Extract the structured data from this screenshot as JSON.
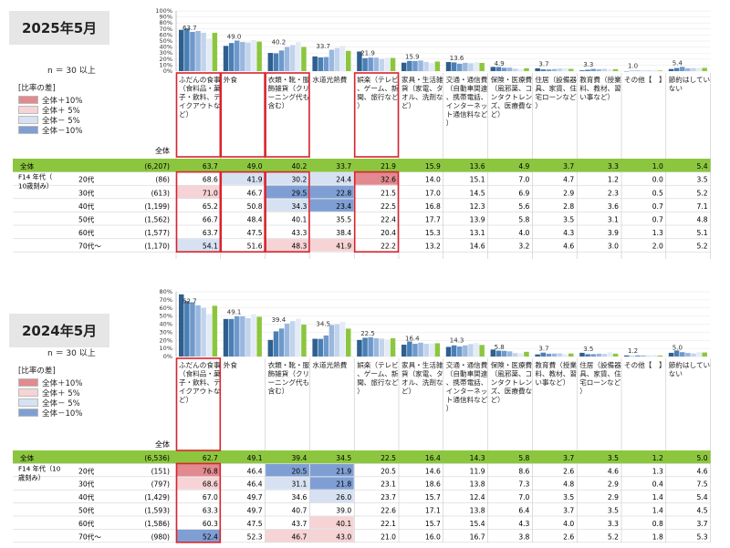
{
  "legend": {
    "title": "[比率の差]",
    "items": [
      {
        "label": "全体＋10%",
        "color": "#e28a8f"
      },
      {
        "label": "全体＋ 5%",
        "color": "#f6d3d5"
      },
      {
        "label": "全体－ 5%",
        "color": "#d6e1f2"
      },
      {
        "label": "全体－10%",
        "color": "#7f9fd4"
      }
    ]
  },
  "colors": {
    "total_row": "#8cc63f",
    "highlight": "#d9232e",
    "series": [
      "#2e5f8e",
      "#4a7fb5",
      "#6e99cc",
      "#9ab7de",
      "#c2d4ec",
      "#e3ebf6",
      "#8cc63f"
    ]
  },
  "y_ticks": [
    "0%",
    "10%",
    "20%",
    "30%",
    "40%",
    "50%",
    "60%",
    "70%",
    "80%"
  ],
  "n_note": "n ＝ 30 以上",
  "axis_group_label": "F14 年代（10歳刻み）",
  "axis_group_label_2024": "F14 年代（10 歳刻み）",
  "total_header": "全体",
  "panels": [
    {
      "title": "2025年5月",
      "categories": [
        "ふだんの食事（食料品・菓子・飲料、テイクアウトなど）",
        "外食",
        "衣類・靴・服飾雑貨（クリーニング代も含む）",
        "水道光熱費",
        "娯楽（テレビ、ゲーム、新聞、旅行など）",
        "家具・生活雑貨（家電、タオル、洗剤など）",
        "交通・通信費（自動車関連、携帯電話、インターネット通信料など）",
        "保険・医療費（風邪薬、コンタクトレンズ、医療費など）",
        "住居（設備器具、家賃、住宅ローンなど）",
        "教育費（授業料、教材、習い事など）",
        "その他【　】",
        "節約はしていない"
      ],
      "top_labels": [
        "63.7",
        "49.0",
        "40.2",
        "33.7",
        "21.9",
        "15.9",
        "13.6",
        "4.9",
        "3.7",
        "3.3",
        "1.0",
        "5.4"
      ],
      "highlighted_columns": [
        0,
        1,
        2,
        4
      ],
      "rows": [
        {
          "label": "全体",
          "n": "(6,207)",
          "values": [
            63.7,
            49.0,
            40.2,
            33.7,
            21.9,
            15.9,
            13.6,
            4.9,
            3.7,
            3.3,
            1.0,
            5.4
          ],
          "shade": [
            "n",
            "n",
            "n",
            "n",
            "n",
            "n",
            "n",
            "n",
            "n",
            "n",
            "n",
            "n"
          ]
        },
        {
          "label": "20代",
          "n": "(86)",
          "values": [
            68.6,
            41.9,
            30.2,
            24.4,
            32.6,
            14.0,
            15.1,
            7.0,
            4.7,
            1.2,
            0.0,
            3.5
          ],
          "shade": [
            "n",
            "l",
            "l",
            "l",
            "p",
            "n",
            "n",
            "n",
            "n",
            "n",
            "n",
            "n"
          ]
        },
        {
          "label": "30代",
          "n": "(613)",
          "values": [
            71.0,
            46.7,
            29.5,
            22.8,
            21.5,
            17.0,
            14.5,
            6.9,
            2.9,
            2.3,
            0.5,
            5.2
          ],
          "shade": [
            "q",
            "n",
            "b",
            "b",
            "n",
            "n",
            "n",
            "n",
            "n",
            "n",
            "n",
            "n"
          ]
        },
        {
          "label": "40代",
          "n": "(1,199)",
          "values": [
            65.2,
            50.8,
            34.3,
            23.4,
            22.5,
            16.8,
            12.3,
            5.6,
            2.8,
            3.6,
            0.7,
            7.1
          ],
          "shade": [
            "n",
            "n",
            "l",
            "b",
            "n",
            "n",
            "n",
            "n",
            "n",
            "n",
            "n",
            "n"
          ]
        },
        {
          "label": "50代",
          "n": "(1,562)",
          "values": [
            66.7,
            48.4,
            40.1,
            35.5,
            22.4,
            17.7,
            13.9,
            5.8,
            3.5,
            3.1,
            0.7,
            4.8
          ],
          "shade": [
            "n",
            "n",
            "n",
            "n",
            "n",
            "n",
            "n",
            "n",
            "n",
            "n",
            "n",
            "n"
          ]
        },
        {
          "label": "60代",
          "n": "(1,577)",
          "values": [
            63.7,
            47.5,
            43.3,
            38.4,
            20.4,
            15.3,
            13.1,
            4.0,
            4.3,
            3.9,
            1.3,
            5.1
          ],
          "shade": [
            "n",
            "n",
            "n",
            "n",
            "n",
            "n",
            "n",
            "n",
            "n",
            "n",
            "n",
            "n"
          ]
        },
        {
          "label": "70代～",
          "n": "(1,170)",
          "values": [
            54.1,
            51.6,
            48.3,
            41.9,
            22.2,
            13.2,
            14.6,
            3.2,
            4.6,
            3.0,
            2.0,
            5.2
          ],
          "shade": [
            "l",
            "n",
            "q",
            "q",
            "n",
            "n",
            "n",
            "n",
            "n",
            "n",
            "n",
            "n"
          ]
        }
      ]
    },
    {
      "title": "2024年5月",
      "categories": [
        "ふだんの食事（食料品・菓子・飲料、テイクアウトなど）",
        "外食",
        "衣類・靴・服飾雑貨（クリーニング代も含む）",
        "水道光熱費",
        "娯楽（テレビ、ゲーム、新聞、旅行など）",
        "家具・生活雑貨（家電、タオル、洗剤など）",
        "交通・通信費（自動車関連、携帯電話、インターネット通信料など）",
        "保険・医療費（風邪薬、コンタクトレンズ、医療費など）",
        "教育費（授業料、教材、習い事など）",
        "住居（設備器具、家賃、住宅ローンなど）",
        "その他【　】",
        "節約はしていない"
      ],
      "top_labels": [
        "62.7",
        "49.1",
        "39.4",
        "34.5",
        "22.5",
        "16.4",
        "14.3",
        "5.8",
        "3.7",
        "3.5",
        "1.2",
        "5.0"
      ],
      "highlighted_columns": [
        0
      ],
      "rows": [
        {
          "label": "全体",
          "n": "(6,536)",
          "values": [
            62.7,
            49.1,
            39.4,
            34.5,
            22.5,
            16.4,
            14.3,
            5.8,
            3.7,
            3.5,
            1.2,
            5.0
          ],
          "shade": [
            "n",
            "n",
            "n",
            "n",
            "n",
            "n",
            "n",
            "n",
            "n",
            "n",
            "n",
            "n"
          ]
        },
        {
          "label": "20代",
          "n": "(151)",
          "values": [
            76.8,
            46.4,
            20.5,
            21.9,
            20.5,
            14.6,
            11.9,
            8.6,
            2.6,
            4.6,
            1.3,
            4.6
          ],
          "shade": [
            "p",
            "n",
            "b",
            "b",
            "n",
            "n",
            "n",
            "n",
            "n",
            "n",
            "n",
            "n"
          ]
        },
        {
          "label": "30代",
          "n": "(797)",
          "values": [
            68.6,
            46.4,
            31.1,
            21.8,
            23.1,
            18.6,
            13.8,
            7.3,
            4.8,
            2.9,
            0.4,
            7.5
          ],
          "shade": [
            "q",
            "n",
            "l",
            "b",
            "n",
            "n",
            "n",
            "n",
            "n",
            "n",
            "n",
            "n"
          ]
        },
        {
          "label": "40代",
          "n": "(1,429)",
          "values": [
            67.0,
            49.7,
            34.6,
            26.0,
            23.7,
            15.7,
            12.4,
            7.0,
            3.5,
            2.9,
            1.4,
            5.4
          ],
          "shade": [
            "n",
            "n",
            "n",
            "l",
            "n",
            "n",
            "n",
            "n",
            "n",
            "n",
            "n",
            "n"
          ]
        },
        {
          "label": "50代",
          "n": "(1,593)",
          "values": [
            63.3,
            49.7,
            40.7,
            39.0,
            22.6,
            17.1,
            13.8,
            6.4,
            3.7,
            3.5,
            1.4,
            4.5
          ],
          "shade": [
            "n",
            "n",
            "n",
            "n",
            "n",
            "n",
            "n",
            "n",
            "n",
            "n",
            "n",
            "n"
          ]
        },
        {
          "label": "60代",
          "n": "(1,586)",
          "values": [
            60.3,
            47.5,
            43.7,
            40.1,
            22.1,
            15.7,
            15.4,
            4.3,
            4.0,
            3.3,
            0.8,
            3.7
          ],
          "shade": [
            "n",
            "n",
            "n",
            "q",
            "n",
            "n",
            "n",
            "n",
            "n",
            "n",
            "n",
            "n"
          ]
        },
        {
          "label": "70代～",
          "n": "(980)",
          "values": [
            52.4,
            52.3,
            46.7,
            43.0,
            21.0,
            16.0,
            16.7,
            3.8,
            2.6,
            5.2,
            1.8,
            5.3
          ],
          "shade": [
            "b",
            "n",
            "q",
            "q",
            "n",
            "n",
            "n",
            "n",
            "n",
            "n",
            "n",
            "n"
          ]
        }
      ]
    }
  ],
  "chart_data": [
    {
      "type": "bar",
      "title": "2025年5月",
      "categories": [
        "ふだんの食事（食料品・菓子・飲料、テイクアウトなど）",
        "外食",
        "衣類・靴・服飾雑貨（クリーニング代も含む）",
        "水道光熱費",
        "娯楽（テレビ、ゲーム、新聞、旅行など）",
        "家具・生活雑貨（家電、タオル、洗剤など）",
        "交通・通信費（自動車関連、携帯電話、インターネット通信料など）",
        "保険・医療費（風邪薬、コンタクトレンズ、医療費など）",
        "住居（設備器具、家賃、住宅ローンなど）",
        "教育費（授業料、教材、習い事など）",
        "その他【　】",
        "節約はしていない"
      ],
      "series": [
        {
          "name": "全体",
          "values": [
            63.7,
            49.0,
            40.2,
            33.7,
            21.9,
            15.9,
            13.6,
            4.9,
            3.7,
            3.3,
            1.0,
            5.4
          ]
        },
        {
          "name": "20代",
          "values": [
            68.6,
            41.9,
            30.2,
            24.4,
            32.6,
            14.0,
            15.1,
            7.0,
            4.7,
            1.2,
            0.0,
            3.5
          ]
        },
        {
          "name": "30代",
          "values": [
            71.0,
            46.7,
            29.5,
            22.8,
            21.5,
            17.0,
            14.5,
            6.9,
            2.9,
            2.3,
            0.5,
            5.2
          ]
        },
        {
          "name": "40代",
          "values": [
            65.2,
            50.8,
            34.3,
            23.4,
            22.5,
            16.8,
            12.3,
            5.6,
            2.8,
            3.6,
            0.7,
            7.1
          ]
        },
        {
          "name": "50代",
          "values": [
            66.7,
            48.4,
            40.1,
            35.5,
            22.4,
            17.7,
            13.9,
            5.8,
            3.5,
            3.1,
            0.7,
            4.8
          ]
        },
        {
          "name": "60代",
          "values": [
            63.7,
            47.5,
            43.3,
            38.4,
            20.4,
            15.3,
            13.1,
            4.0,
            4.3,
            3.9,
            1.3,
            5.1
          ]
        },
        {
          "name": "70代～",
          "values": [
            54.1,
            51.6,
            48.3,
            41.9,
            22.2,
            13.2,
            14.6,
            3.2,
            4.6,
            3.0,
            2.0,
            5.2
          ]
        }
      ],
      "ylim": [
        0,
        100
      ],
      "grid": true
    },
    {
      "type": "bar",
      "title": "2024年5月",
      "categories": [
        "ふだんの食事（食料品・菓子・飲料、テイクアウトなど）",
        "外食",
        "衣類・靴・服飾雑貨（クリーニング代も含む）",
        "水道光熱費",
        "娯楽（テレビ、ゲーム、新聞、旅行など）",
        "家具・生活雑貨（家電、タオル、洗剤など）",
        "交通・通信費（自動車関連、携帯電話、インターネット通信料など）",
        "保険・医療費（風邪薬、コンタクトレンズ、医療費など）",
        "教育費（授業料、教材、習い事など）",
        "住居（設備器具、家賃、住宅ローンなど）",
        "その他【　】",
        "節約はしていない"
      ],
      "series": [
        {
          "name": "全体",
          "values": [
            62.7,
            49.1,
            39.4,
            34.5,
            22.5,
            16.4,
            14.3,
            5.8,
            3.7,
            3.5,
            1.2,
            5.0
          ]
        },
        {
          "name": "20代",
          "values": [
            76.8,
            46.4,
            20.5,
            21.9,
            20.5,
            14.6,
            11.9,
            8.6,
            2.6,
            4.6,
            1.3,
            4.6
          ]
        },
        {
          "name": "30代",
          "values": [
            68.6,
            46.4,
            31.1,
            21.8,
            23.1,
            18.6,
            13.8,
            7.3,
            4.8,
            2.9,
            0.4,
            7.5
          ]
        },
        {
          "name": "40代",
          "values": [
            67.0,
            49.7,
            34.6,
            26.0,
            23.7,
            15.7,
            12.4,
            7.0,
            3.5,
            2.9,
            1.4,
            5.4
          ]
        },
        {
          "name": "50代",
          "values": [
            63.3,
            49.7,
            40.7,
            39.0,
            22.6,
            17.1,
            13.8,
            6.4,
            3.7,
            3.5,
            1.4,
            4.5
          ]
        },
        {
          "name": "60代",
          "values": [
            60.3,
            47.5,
            43.7,
            40.1,
            22.1,
            15.7,
            15.4,
            4.3,
            4.0,
            3.3,
            0.8,
            3.7
          ]
        },
        {
          "name": "70代～",
          "values": [
            52.4,
            52.3,
            46.7,
            43.0,
            21.0,
            16.0,
            16.7,
            3.8,
            2.6,
            5.2,
            1.8,
            5.3
          ]
        }
      ],
      "ylim": [
        0,
        80
      ],
      "grid": true
    }
  ]
}
